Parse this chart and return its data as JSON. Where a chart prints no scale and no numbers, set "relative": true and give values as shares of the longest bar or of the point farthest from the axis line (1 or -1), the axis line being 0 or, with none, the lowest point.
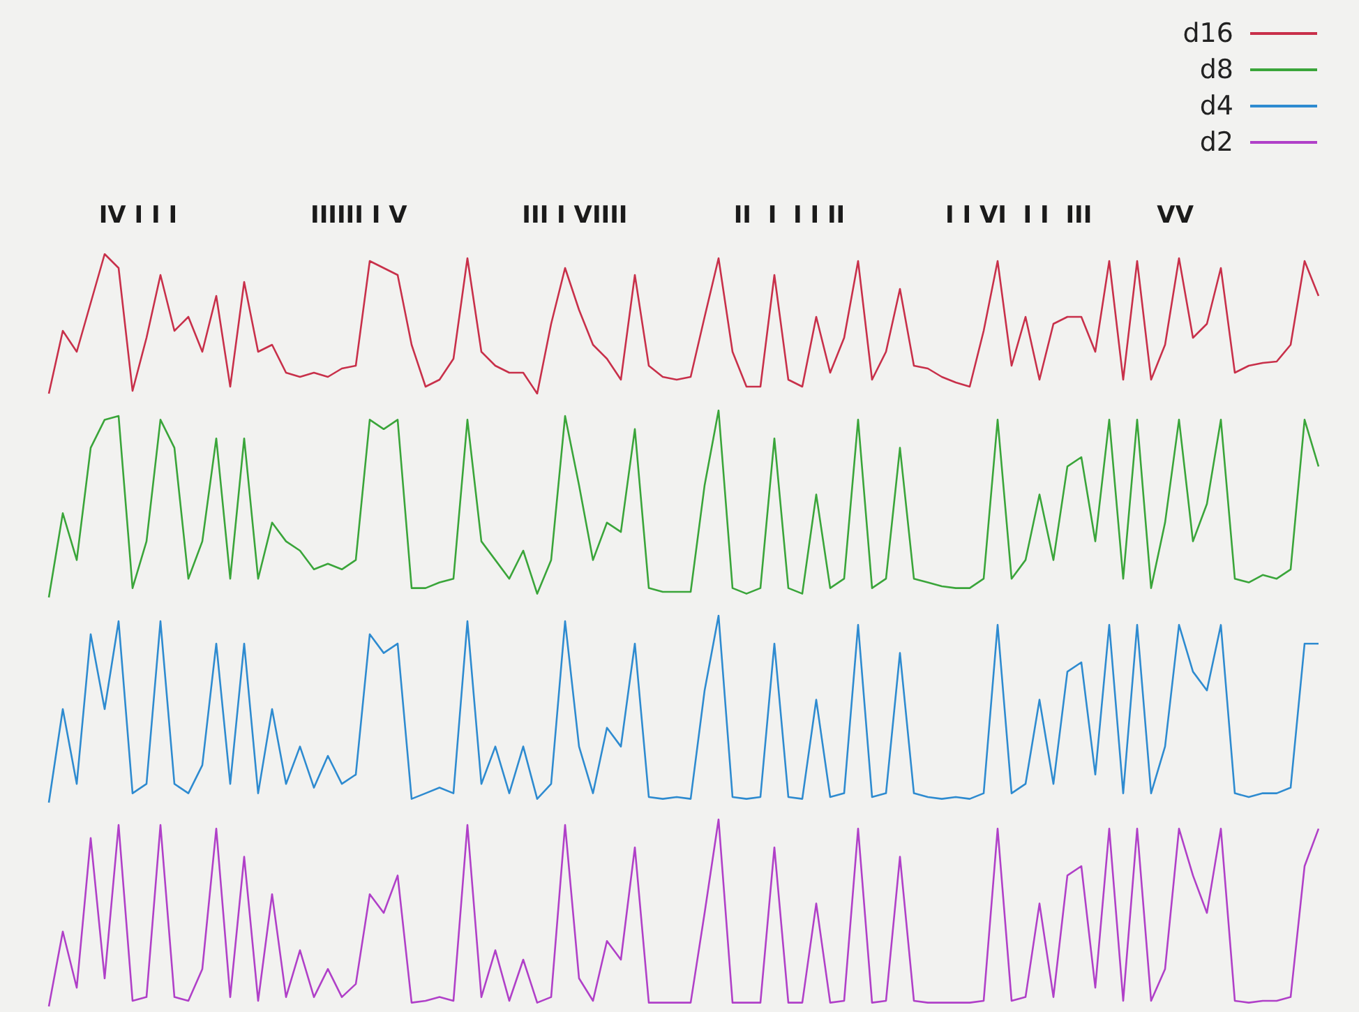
{
  "chart_data": [
    {
      "type": "line",
      "relative": true,
      "legend": "top right",
      "annotations": [
        "IV I I I",
        "IIIIII I V",
        "III I VIIII",
        "II  I  I I II",
        "I I VI  I I  III",
        "VV"
      ],
      "categories": [
        null,
        null,
        null,
        null,
        null,
        null,
        null,
        null,
        null,
        null,
        null,
        null,
        null,
        null,
        null,
        null,
        null,
        null,
        null,
        null,
        null,
        null,
        null,
        null,
        null,
        null,
        null,
        null,
        null,
        null,
        null,
        null,
        null,
        null,
        null,
        null,
        null,
        null,
        null,
        null,
        null,
        null,
        null,
        null,
        null,
        null,
        null,
        null,
        null,
        null,
        null,
        null,
        null,
        null,
        null,
        null,
        null,
        null,
        null,
        null,
        null,
        null,
        null,
        null,
        null,
        null,
        null,
        null,
        null,
        null,
        null,
        null,
        null,
        null,
        null,
        null,
        null,
        null,
        null,
        null,
        null,
        null,
        null,
        null,
        null,
        null,
        null,
        null,
        null,
        null,
        null,
        null
      ],
      "series": [
        {
          "name": "d16",
          "color": "#c8304a",
          "values": [
            0,
            0.45,
            0.3,
            0.65,
            1,
            0.9,
            0.02,
            0.4,
            0.85,
            0.45,
            0.55,
            0.3,
            0.7,
            0.05,
            0.8,
            0.3,
            0.35,
            0.15,
            0.12,
            0.15,
            0.12,
            0.18,
            0.2,
            0.95,
            0.9,
            0.85,
            0.35,
            0.05,
            0.1,
            0.25,
            0.97,
            0.3,
            0.2,
            0.15,
            0.15,
            0,
            0.5,
            0.9,
            0.6,
            0.35,
            0.25,
            0.1,
            0.85,
            0.2,
            0.12,
            0.1,
            0.12,
            0.55,
            0.97,
            0.3,
            0.05,
            0.05,
            0.85,
            0.1,
            0.05,
            0.55,
            0.15,
            0.4,
            0.95,
            0.1,
            0.3,
            0.75,
            0.2,
            0.18,
            0.12,
            0.08,
            0.05,
            0.45,
            0.95,
            0.2,
            0.55,
            0.1,
            0.5,
            0.55,
            0.55,
            0.3,
            0.95,
            0.1,
            0.95,
            0.1,
            0.35,
            0.97,
            0.4,
            0.5,
            0.9,
            0.15,
            0.2,
            0.22,
            0.23,
            0.35,
            0.95,
            0.7
          ]
        }
      ]
    },
    {
      "type": "line",
      "relative": true,
      "legend": "top right",
      "categories": [
        null,
        null,
        null,
        null,
        null,
        null,
        null,
        null,
        null,
        null,
        null,
        null,
        null,
        null,
        null,
        null,
        null,
        null,
        null,
        null,
        null,
        null,
        null,
        null,
        null,
        null,
        null,
        null,
        null,
        null,
        null,
        null,
        null,
        null,
        null,
        null,
        null,
        null,
        null,
        null,
        null,
        null,
        null,
        null,
        null,
        null,
        null,
        null,
        null,
        null,
        null,
        null,
        null,
        null,
        null,
        null,
        null,
        null,
        null,
        null,
        null,
        null,
        null,
        null,
        null,
        null,
        null,
        null,
        null,
        null,
        null,
        null,
        null,
        null,
        null,
        null,
        null,
        null,
        null,
        null,
        null,
        null,
        null,
        null,
        null,
        null,
        null,
        null,
        null,
        null,
        null,
        null
      ],
      "series": [
        {
          "name": "d8",
          "color": "#3aa53a",
          "values": [
            0,
            0.45,
            0.2,
            0.8,
            0.95,
            0.97,
            0.05,
            0.3,
            0.95,
            0.8,
            0.1,
            0.3,
            0.85,
            0.1,
            0.85,
            0.1,
            0.4,
            0.3,
            0.25,
            0.15,
            0.18,
            0.15,
            0.2,
            0.95,
            0.9,
            0.95,
            0.05,
            0.05,
            0.08,
            0.1,
            0.95,
            0.3,
            0.2,
            0.1,
            0.25,
            0.02,
            0.2,
            0.97,
            0.6,
            0.2,
            0.4,
            0.35,
            0.9,
            0.05,
            0.03,
            0.03,
            0.03,
            0.6,
            1,
            0.05,
            0.02,
            0.05,
            0.85,
            0.05,
            0.02,
            0.55,
            0.05,
            0.1,
            0.95,
            0.05,
            0.1,
            0.8,
            0.1,
            0.08,
            0.06,
            0.05,
            0.05,
            0.1,
            0.95,
            0.1,
            0.2,
            0.55,
            0.2,
            0.7,
            0.75,
            0.3,
            0.95,
            0.1,
            0.95,
            0.05,
            0.4,
            0.95,
            0.3,
            0.5,
            0.95,
            0.1,
            0.08,
            0.12,
            0.1,
            0.15,
            0.95,
            0.7
          ]
        }
      ]
    },
    {
      "type": "line",
      "relative": true,
      "legend": "top right",
      "categories": [
        null,
        null,
        null,
        null,
        null,
        null,
        null,
        null,
        null,
        null,
        null,
        null,
        null,
        null,
        null,
        null,
        null,
        null,
        null,
        null,
        null,
        null,
        null,
        null,
        null,
        null,
        null,
        null,
        null,
        null,
        null,
        null,
        null,
        null,
        null,
        null,
        null,
        null,
        null,
        null,
        null,
        null,
        null,
        null,
        null,
        null,
        null,
        null,
        null,
        null,
        null,
        null,
        null,
        null,
        null,
        null,
        null,
        null,
        null,
        null,
        null,
        null,
        null,
        null,
        null,
        null,
        null,
        null,
        null,
        null,
        null,
        null,
        null,
        null,
        null,
        null,
        null,
        null,
        null,
        null,
        null,
        null,
        null,
        null,
        null,
        null,
        null,
        null,
        null,
        null,
        null,
        null
      ],
      "series": [
        {
          "name": "d4",
          "color": "#2e8bd0",
          "values": [
            0,
            0.5,
            0.1,
            0.9,
            0.5,
            0.97,
            0.05,
            0.1,
            0.97,
            0.1,
            0.05,
            0.2,
            0.85,
            0.1,
            0.85,
            0.05,
            0.5,
            0.1,
            0.3,
            0.08,
            0.25,
            0.1,
            0.15,
            0.9,
            0.8,
            0.85,
            0.02,
            0.05,
            0.08,
            0.05,
            0.97,
            0.1,
            0.3,
            0.05,
            0.3,
            0.02,
            0.1,
            0.97,
            0.3,
            0.05,
            0.4,
            0.3,
            0.85,
            0.03,
            0.02,
            0.03,
            0.02,
            0.6,
            1,
            0.03,
            0.02,
            0.03,
            0.85,
            0.03,
            0.02,
            0.55,
            0.03,
            0.05,
            0.95,
            0.03,
            0.05,
            0.8,
            0.05,
            0.03,
            0.02,
            0.03,
            0.02,
            0.05,
            0.95,
            0.05,
            0.1,
            0.55,
            0.1,
            0.7,
            0.75,
            0.15,
            0.95,
            0.05,
            0.95,
            0.05,
            0.3,
            0.95,
            0.7,
            0.6,
            0.95,
            0.05,
            0.03,
            0.05,
            0.05,
            0.08,
            0.85,
            0.85
          ]
        }
      ]
    },
    {
      "type": "line",
      "relative": true,
      "legend": "top right",
      "categories": [
        null,
        null,
        null,
        null,
        null,
        null,
        null,
        null,
        null,
        null,
        null,
        null,
        null,
        null,
        null,
        null,
        null,
        null,
        null,
        null,
        null,
        null,
        null,
        null,
        null,
        null,
        null,
        null,
        null,
        null,
        null,
        null,
        null,
        null,
        null,
        null,
        null,
        null,
        null,
        null,
        null,
        null,
        null,
        null,
        null,
        null,
        null,
        null,
        null,
        null,
        null,
        null,
        null,
        null,
        null,
        null,
        null,
        null,
        null,
        null,
        null,
        null,
        null,
        null,
        null,
        null,
        null,
        null,
        null,
        null,
        null,
        null,
        null,
        null,
        null,
        null,
        null,
        null,
        null,
        null,
        null,
        null,
        null,
        null,
        null,
        null,
        null,
        null,
        null,
        null,
        null,
        null
      ],
      "series": [
        {
          "name": "d2",
          "color": "#b040c8",
          "values": [
            0,
            0.4,
            0.1,
            0.9,
            0.15,
            0.97,
            0.03,
            0.05,
            0.97,
            0.05,
            0.03,
            0.2,
            0.95,
            0.05,
            0.8,
            0.03,
            0.6,
            0.05,
            0.3,
            0.05,
            0.2,
            0.05,
            0.12,
            0.6,
            0.5,
            0.7,
            0.02,
            0.03,
            0.05,
            0.03,
            0.97,
            0.05,
            0.3,
            0.03,
            0.25,
            0.02,
            0.05,
            0.97,
            0.15,
            0.03,
            0.35,
            0.25,
            0.85,
            0.02,
            0.02,
            0.02,
            0.02,
            0.5,
            1,
            0.02,
            0.02,
            0.02,
            0.85,
            0.02,
            0.02,
            0.55,
            0.02,
            0.03,
            0.95,
            0.02,
            0.03,
            0.8,
            0.03,
            0.02,
            0.02,
            0.02,
            0.02,
            0.03,
            0.95,
            0.03,
            0.05,
            0.55,
            0.05,
            0.7,
            0.75,
            0.1,
            0.95,
            0.03,
            0.95,
            0.03,
            0.2,
            0.95,
            0.7,
            0.5,
            0.95,
            0.03,
            0.02,
            0.03,
            0.03,
            0.05,
            0.75,
            0.95
          ]
        }
      ]
    }
  ]
}
